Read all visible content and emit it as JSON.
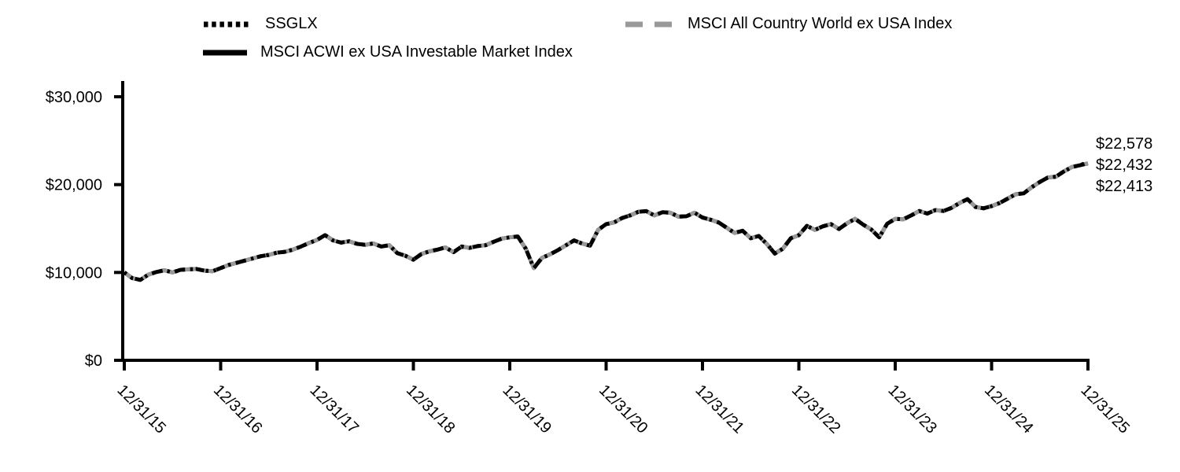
{
  "chart_data": {
    "type": "line",
    "grid": false,
    "legend_position": "top",
    "background_color": "#ffffff",
    "axis_color": "#000000",
    "ylim": [
      0,
      30000
    ],
    "y_tick_values": [
      0,
      10000,
      20000,
      30000
    ],
    "y_tick_labels": [
      "$0",
      "$10,000",
      "$20,000",
      "$30,000"
    ],
    "x_tick_labels": [
      "12/31/15",
      "12/31/16",
      "12/31/17",
      "12/31/18",
      "12/31/19",
      "12/31/20",
      "12/31/21",
      "12/31/22",
      "12/31/23",
      "12/31/24",
      "12/31/25"
    ],
    "points_per_year": 12,
    "series": [
      {
        "label": "SSGLX",
        "color": "#000000",
        "line_style": "dotted",
        "end_value": 22578,
        "end_label": "$22,578"
      },
      {
        "label": "MSCI All Country World ex USA Index",
        "color": "#999999",
        "line_style": "dashed",
        "end_value": 22432,
        "end_label": "$22,432"
      },
      {
        "label": "MSCI ACWI ex USA Investable Market Index",
        "color": "#000000",
        "line_style": "solid",
        "end_value": 22413,
        "end_label": "$22,413"
      }
    ],
    "values_monthly": [
      10000,
      9350,
      9150,
      9750,
      10050,
      10250,
      10000,
      10300,
      10350,
      10400,
      10200,
      10150,
      10500,
      10850,
      11100,
      11350,
      11600,
      11850,
      12000,
      12250,
      12350,
      12600,
      12950,
      13350,
      13700,
      14250,
      13650,
      13400,
      13550,
      13250,
      13150,
      13300,
      12950,
      13100,
      12200,
      11900,
      11450,
      12100,
      12400,
      12600,
      12850,
      12300,
      12950,
      12800,
      13000,
      13100,
      13500,
      13850,
      14000,
      14100,
      12700,
      10500,
      11650,
      12050,
      12550,
      13100,
      13650,
      13300,
      13050,
      14850,
      15500,
      15700,
      16200,
      16500,
      16900,
      16980,
      16500,
      16850,
      16800,
      16350,
      16400,
      16800,
      16250,
      16000,
      15700,
      15100,
      14500,
      14750,
      13900,
      14150,
      13250,
      12150,
      12700,
      13900,
      14250,
      15300,
      14850,
      15250,
      15500,
      14950,
      15600,
      16100,
      15450,
      14900,
      14000,
      15550,
      16100,
      16050,
      16500,
      17000,
      16700,
      17100,
      17000,
      17350,
      17900,
      18350,
      17450,
      17300,
      17550,
      17900,
      18400,
      18900,
      19000,
      19700,
      20300,
      20800,
      20900,
      21500,
      22000,
      22200,
      22413
    ]
  }
}
